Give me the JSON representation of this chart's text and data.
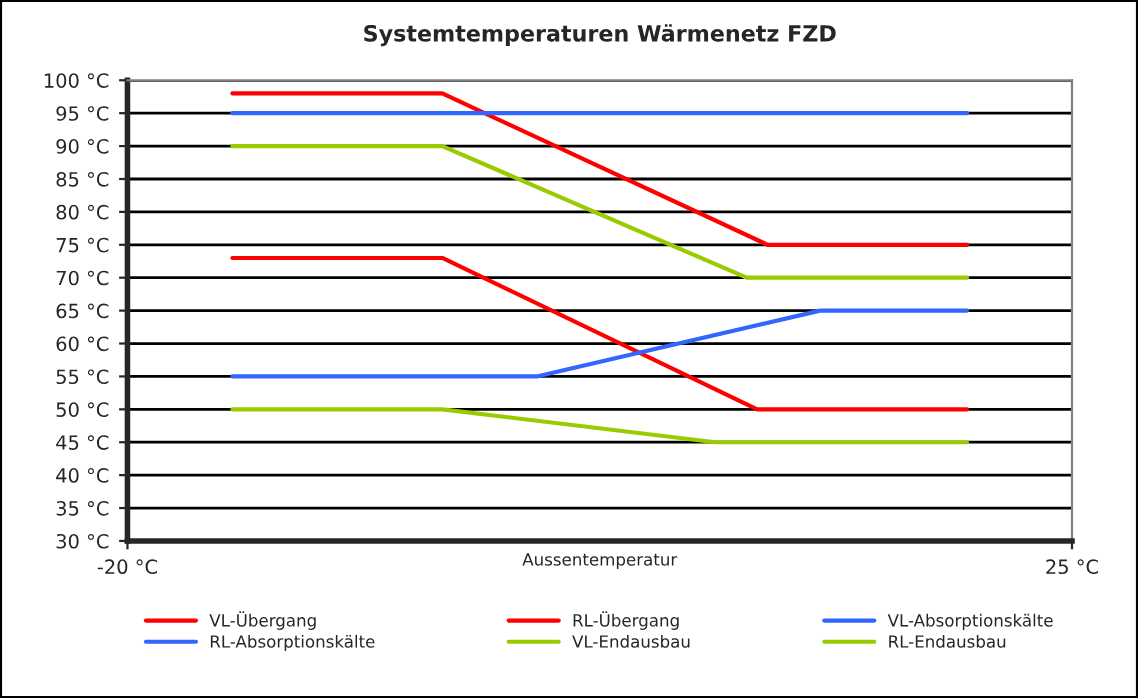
{
  "chart_data": {
    "type": "line",
    "title": "Systemtemperaturen Wärmenetz FZD",
    "xlabel": "Aussentemperatur",
    "series": [
      {
        "name": "VL-Übergang",
        "color": "#ff0000",
        "x": [
          -15,
          -5,
          10.5,
          20
        ],
        "values": [
          98,
          98,
          75,
          75
        ]
      },
      {
        "name": "RL-Übergang",
        "color": "#ff0000",
        "x": [
          -15,
          -5,
          10,
          20
        ],
        "values": [
          73,
          73,
          50,
          50
        ]
      },
      {
        "name": "VL-Absorptionskälte",
        "color": "#3366ff",
        "x": [
          -15,
          20
        ],
        "values": [
          95,
          95
        ]
      },
      {
        "name": "RL-Absorptionskälte",
        "color": "#3366ff",
        "x": [
          -15,
          -0.5,
          13,
          20
        ],
        "values": [
          55,
          55,
          65,
          65
        ]
      },
      {
        "name": "VL-Endausbau",
        "color": "#99cc00",
        "x": [
          -15,
          -5,
          9.5,
          20
        ],
        "values": [
          90,
          90,
          70,
          70
        ]
      },
      {
        "name": "RL-Endausbau",
        "color": "#99cc00",
        "x": [
          -15,
          -5,
          8,
          20
        ],
        "values": [
          50,
          50,
          45,
          45
        ]
      }
    ],
    "xlim": [
      -20,
      25
    ],
    "xticks": [
      {
        "value": -20,
        "label": "-20 °C"
      },
      {
        "value": 25,
        "label": "25 °C"
      }
    ],
    "ylim": [
      30,
      100
    ],
    "yticks": [
      {
        "value": 30,
        "label": "30 °C"
      },
      {
        "value": 35,
        "label": "35 °C"
      },
      {
        "value": 40,
        "label": "40 °C"
      },
      {
        "value": 45,
        "label": "45 °C"
      },
      {
        "value": 50,
        "label": "50 °C"
      },
      {
        "value": 55,
        "label": "55 °C"
      },
      {
        "value": 60,
        "label": "60 °C"
      },
      {
        "value": 65,
        "label": "65 °C"
      },
      {
        "value": 70,
        "label": "70 °C"
      },
      {
        "value": 75,
        "label": "75 °C"
      },
      {
        "value": 80,
        "label": "80 °C"
      },
      {
        "value": 85,
        "label": "85 °C"
      },
      {
        "value": 90,
        "label": "90 °C"
      },
      {
        "value": 95,
        "label": "95 °C"
      },
      {
        "value": 100,
        "label": "100 °C"
      }
    ],
    "grid": "y",
    "legend": "bottom",
    "marker": "none",
    "line_style": "solid"
  }
}
